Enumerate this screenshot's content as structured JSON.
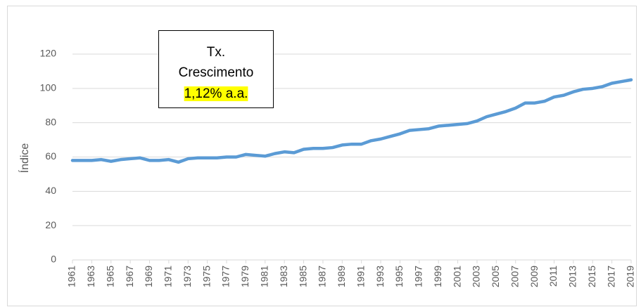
{
  "chart_data": {
    "type": "line",
    "y_label": "Índice",
    "annotation": [
      "Tx.",
      "Crescimento",
      "1,12% a.a."
    ],
    "annotation_highlight": "#ffff00",
    "x": [
      1961,
      1962,
      1963,
      1964,
      1965,
      1966,
      1967,
      1968,
      1969,
      1970,
      1971,
      1972,
      1973,
      1974,
      1975,
      1976,
      1977,
      1978,
      1979,
      1980,
      1981,
      1982,
      1983,
      1984,
      1985,
      1986,
      1987,
      1988,
      1989,
      1990,
      1991,
      1992,
      1993,
      1994,
      1995,
      1996,
      1997,
      1998,
      1999,
      2000,
      2001,
      2002,
      2003,
      2004,
      2005,
      2006,
      2007,
      2008,
      2009,
      2010,
      2011,
      2012,
      2013,
      2014,
      2015,
      2016,
      2017,
      2018,
      2019
    ],
    "series": [
      {
        "name": "Índice",
        "color": "#5b9bd5",
        "values": [
          58,
          58,
          58,
          58.5,
          57.5,
          58.5,
          59,
          59.5,
          58,
          58,
          58.5,
          57,
          59,
          59.5,
          59.5,
          59.5,
          60,
          60,
          61.5,
          61,
          60.5,
          62,
          63,
          62.5,
          64.5,
          65,
          65,
          65.5,
          67,
          67.5,
          67.5,
          69.5,
          70.5,
          72,
          73.5,
          75.5,
          76,
          76.5,
          78,
          78.5,
          79,
          79.5,
          81,
          83.5,
          85,
          86.5,
          88.5,
          91.5,
          91.5,
          92.5,
          95,
          96,
          98,
          99.5,
          100,
          101,
          103,
          104,
          105
        ]
      }
    ],
    "xlim": [
      1961,
      2019
    ],
    "xticks": [
      1961,
      1963,
      1965,
      1967,
      1969,
      1971,
      1973,
      1975,
      1977,
      1979,
      1981,
      1983,
      1985,
      1987,
      1989,
      1991,
      1993,
      1995,
      1997,
      1999,
      2001,
      2003,
      2005,
      2007,
      2009,
      2011,
      2013,
      2015,
      2017,
      2019
    ],
    "ylim": [
      0,
      120
    ],
    "yticks": [
      0,
      20,
      40,
      60,
      80,
      100,
      120
    ],
    "grid": true
  }
}
